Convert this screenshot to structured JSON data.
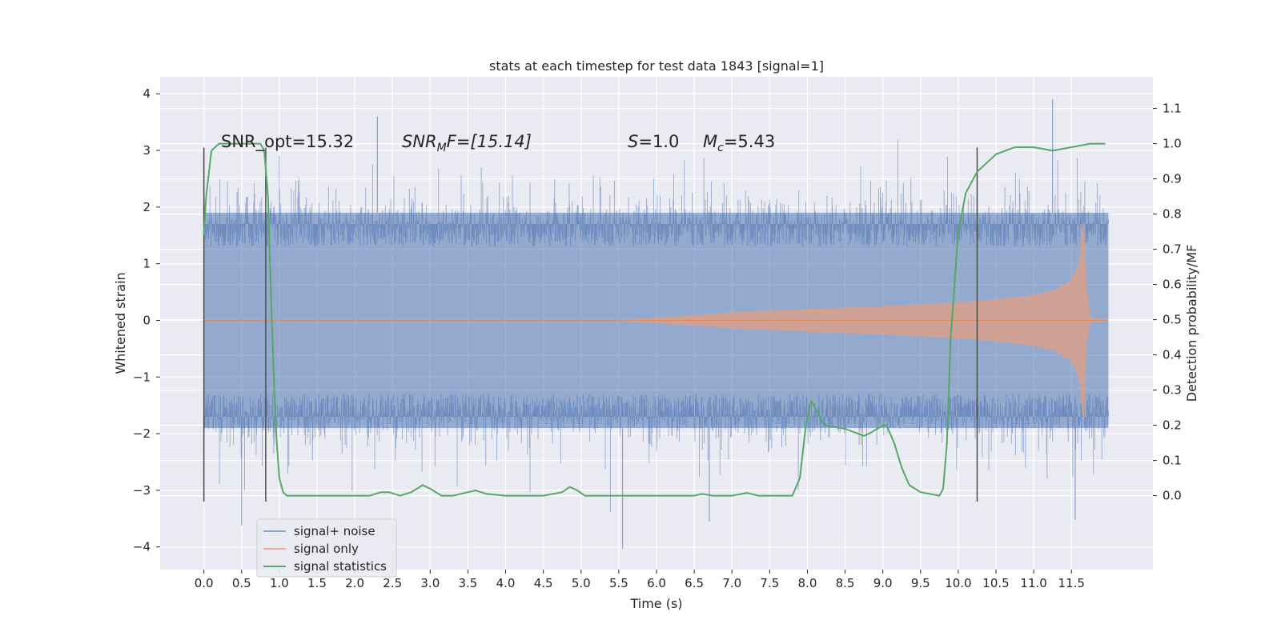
{
  "chart_data": {
    "type": "line",
    "title": "stats at each timestep for test data 1843 [signal=1]",
    "xlabel": "Time (s)",
    "ylabel": "Whitened strain",
    "y2label": "Detection probability/MF",
    "xlim": [
      -0.58,
      12.58
    ],
    "ylim": [
      -4.4,
      4.3
    ],
    "y2lim": [
      -0.21,
      1.19
    ],
    "xticks": [
      "0.0",
      "0.5",
      "1.0",
      "1.5",
      "2.0",
      "2.5",
      "3.0",
      "3.5",
      "4.0",
      "4.5",
      "5.0",
      "5.5",
      "6.0",
      "6.5",
      "7.0",
      "7.5",
      "8.0",
      "8.5",
      "9.0",
      "9.5",
      "10.0",
      "10.5",
      "11.0",
      "11.5"
    ],
    "yticks": [
      "4",
      "3",
      "2",
      "1",
      "0",
      "−1",
      "−2",
      "−3",
      "−4"
    ],
    "y2ticks": [
      "1.1",
      "1.0",
      "0.9",
      "0.8",
      "0.7",
      "0.6",
      "0.5",
      "0.4",
      "0.3",
      "0.2",
      "0.1",
      "0.0"
    ],
    "grid": true,
    "legend_position": "lower-left",
    "annotations": {
      "snr_opt": "SNR_opt=15.32",
      "snr_mf_label": "SNR",
      "snr_mf_sub": "M",
      "snr_mf_tail": "F=[15.14]",
      "s_label": "S",
      "s_value": "=1.0",
      "mc_label": "M",
      "mc_sub": "c",
      "mc_value": "=5.43"
    },
    "series": [
      {
        "name": "signal+ noise",
        "color": "#4c72b0",
        "x_range": [
          0.0,
          11.99
        ],
        "envelope_upper": 1.9,
        "envelope_lower": -1.9,
        "peak_max": 3.9,
        "peak_min": -4.03
      },
      {
        "name": "signal only",
        "color": "#dd8452",
        "x": [
          0.0,
          5.5,
          6.0,
          7.0,
          8.0,
          9.0,
          10.0,
          10.5,
          11.0,
          11.3,
          11.5,
          11.6,
          11.65,
          11.67,
          11.7,
          11.75,
          11.99
        ],
        "amplitude": [
          0.0,
          0.01,
          0.05,
          0.14,
          0.2,
          0.25,
          0.32,
          0.37,
          0.45,
          0.55,
          0.72,
          1.0,
          1.7,
          1.75,
          0.6,
          0.05,
          0.02
        ]
      },
      {
        "name": "signal statistics",
        "color": "#55a868",
        "x": [
          0.0,
          0.03,
          0.1,
          0.2,
          0.3,
          0.6,
          0.75,
          0.8,
          0.85,
          0.9,
          0.95,
          1.0,
          1.05,
          1.1,
          1.2,
          1.5,
          2.0,
          2.2,
          2.35,
          2.45,
          2.6,
          2.75,
          2.9,
          3.0,
          3.15,
          3.3,
          3.5,
          3.6,
          3.75,
          4.0,
          4.5,
          4.75,
          4.85,
          4.95,
          5.05,
          5.5,
          6.0,
          6.5,
          6.6,
          6.75,
          7.0,
          7.2,
          7.35,
          7.5,
          7.8,
          7.9,
          7.98,
          8.05,
          8.1,
          8.2,
          8.25,
          8.5,
          8.75,
          8.85,
          9.0,
          9.05,
          9.15,
          9.25,
          9.35,
          9.5,
          9.75,
          9.8,
          9.85,
          9.9,
          10.0,
          10.1,
          10.25,
          10.5,
          10.75,
          11.0,
          11.25,
          11.5,
          11.75,
          11.95
        ],
        "values": [
          0.74,
          0.85,
          0.98,
          1.0,
          1.0,
          1.0,
          1.0,
          0.98,
          0.85,
          0.5,
          0.2,
          0.05,
          0.01,
          0.0,
          0.0,
          0.0,
          0.0,
          0.0,
          0.01,
          0.01,
          0.0,
          0.01,
          0.03,
          0.02,
          0.0,
          0.0,
          0.01,
          0.015,
          0.005,
          0.0,
          0.0,
          0.01,
          0.025,
          0.015,
          0.0,
          0.0,
          0.0,
          0.0,
          0.005,
          0.0,
          0.0,
          0.008,
          0.0,
          0.0,
          0.0,
          0.05,
          0.2,
          0.27,
          0.25,
          0.21,
          0.2,
          0.19,
          0.17,
          0.18,
          0.2,
          0.2,
          0.15,
          0.08,
          0.03,
          0.01,
          0.0,
          0.02,
          0.15,
          0.45,
          0.75,
          0.86,
          0.92,
          0.97,
          0.99,
          0.99,
          0.98,
          0.99,
          1.0,
          1.0
        ]
      }
    ],
    "vlines": [
      0.0,
      0.82,
      10.25
    ]
  }
}
